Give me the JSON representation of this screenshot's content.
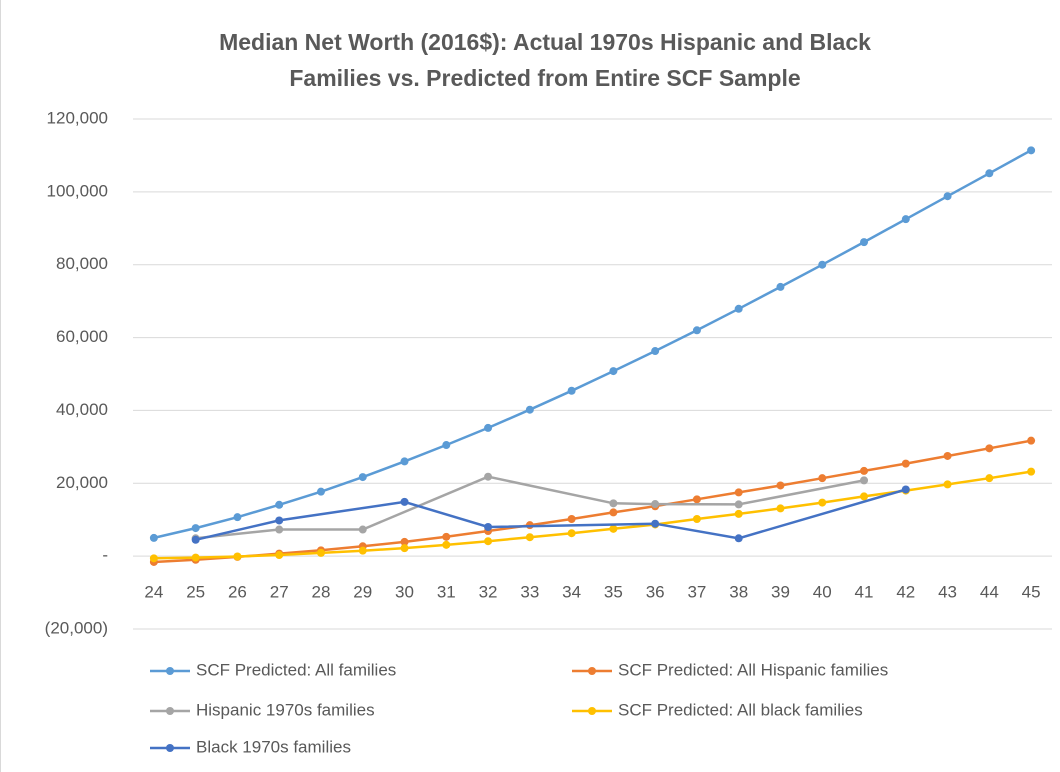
{
  "chart_data": {
    "type": "line",
    "title": [
      "Median Net Worth (2016$): Actual 1970s Hispanic and Black",
      "Families vs. Predicted from Entire SCF Sample"
    ],
    "xlim": [
      23.5,
      45.5
    ],
    "xticks": [
      24,
      25,
      26,
      27,
      28,
      29,
      30,
      31,
      32,
      33,
      34,
      35,
      36,
      37,
      38,
      39,
      40,
      41,
      42,
      43,
      44,
      45
    ],
    "ylim": [
      -20000,
      120000
    ],
    "yticks": [
      {
        "value": -20000,
        "label": "(20,000)"
      },
      {
        "value": 0,
        "label": "-"
      },
      {
        "value": 20000,
        "label": "20,000"
      },
      {
        "value": 40000,
        "label": "40,000"
      },
      {
        "value": 60000,
        "label": "60,000"
      },
      {
        "value": 80000,
        "label": "80,000"
      },
      {
        "value": 100000,
        "label": "100,000"
      },
      {
        "value": 120000,
        "label": "120,000"
      }
    ],
    "grid": true,
    "legend": "bottom",
    "series": [
      {
        "name": "SCF Predicted: All families",
        "color": "#5b9bd5",
        "x": [
          24,
          25,
          26,
          27,
          28,
          29,
          30,
          31,
          32,
          33,
          34,
          35,
          36,
          37,
          38,
          39,
          40,
          41,
          42,
          43,
          44,
          45
        ],
        "values": [
          5000,
          7700,
          10700,
          14100,
          17700,
          21700,
          26000,
          30500,
          35200,
          40200,
          45400,
          50800,
          56300,
          62000,
          67900,
          73900,
          80000,
          86200,
          92500,
          98800,
          105100,
          111400
        ]
      },
      {
        "name": "SCF Predicted: All Hispanic families",
        "color": "#ed7d31",
        "x": [
          24,
          25,
          26,
          27,
          28,
          29,
          30,
          31,
          32,
          33,
          34,
          35,
          36,
          37,
          38,
          39,
          40,
          41,
          42,
          43,
          44,
          45
        ],
        "values": [
          -1600,
          -1000,
          -200,
          700,
          1600,
          2700,
          3900,
          5300,
          6900,
          8500,
          10200,
          12000,
          13700,
          15600,
          17500,
          19400,
          21400,
          23400,
          25400,
          27500,
          29600,
          31700
        ]
      },
      {
        "name": "Hispanic 1970s families",
        "color": "#a5a5a5",
        "x": [
          25,
          27,
          29,
          32,
          35,
          36,
          38,
          41
        ],
        "values": [
          4900,
          7300,
          7300,
          21800,
          14500,
          14300,
          14200,
          20800
        ]
      },
      {
        "name": "SCF Predicted: All black families",
        "color": "#ffc000",
        "x": [
          24,
          25,
          26,
          27,
          28,
          29,
          30,
          31,
          32,
          33,
          34,
          35,
          36,
          37,
          38,
          39,
          40,
          41,
          42,
          43,
          44,
          45
        ],
        "values": [
          -600,
          -400,
          -100,
          300,
          900,
          1500,
          2200,
          3100,
          4100,
          5200,
          6300,
          7500,
          8700,
          10200,
          11600,
          13100,
          14700,
          16400,
          18000,
          19700,
          21400,
          23200
        ]
      },
      {
        "name": "Black 1970s families",
        "color": "#4472c4",
        "x": [
          25,
          27,
          30,
          32,
          36,
          38,
          42
        ],
        "values": [
          4500,
          9800,
          14900,
          8000,
          8900,
          4900,
          18300
        ]
      }
    ]
  }
}
